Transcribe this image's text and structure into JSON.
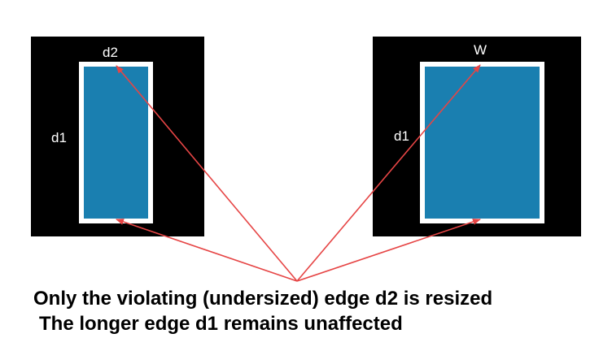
{
  "panels": {
    "left": {
      "top_label": "d2",
      "side_label": "d1"
    },
    "right": {
      "top_label": "W",
      "side_label": "d1"
    }
  },
  "captions": {
    "line1": "Only the violating (undersized) edge d2 is resized",
    "line2": "The longer edge d1 remains unaffected"
  },
  "colors": {
    "panel_background": "#000000",
    "frame": "#ffffff",
    "fill": "#1a7fb0",
    "arrow": "#e64545",
    "label": "#ffffff",
    "caption": "#000000"
  }
}
